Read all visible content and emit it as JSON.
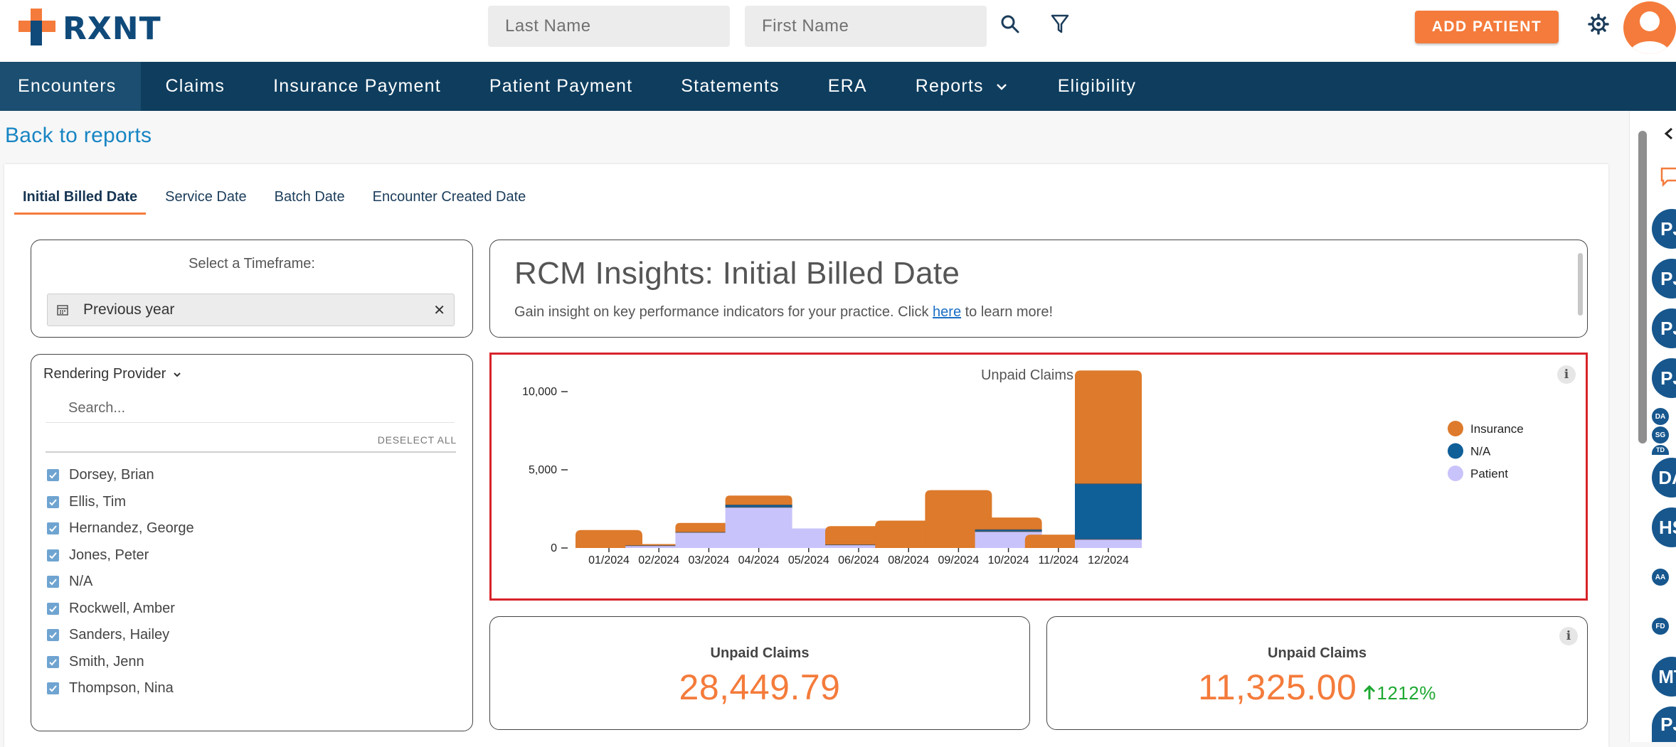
{
  "brand": {
    "name": "RXNT",
    "accent": "#f47b3b",
    "navy": "#0e3d5e"
  },
  "header": {
    "last_name_placeholder": "Last Name",
    "first_name_placeholder": "First Name",
    "add_patient_label": "ADD PATIENT"
  },
  "nav": {
    "items": [
      "Encounters",
      "Claims",
      "Insurance Payment",
      "Patient Payment",
      "Statements",
      "ERA",
      "Reports",
      "Eligibility"
    ]
  },
  "back_link": "Back to reports",
  "tabs": [
    "Initial Billed Date",
    "Service Date",
    "Batch Date",
    "Encounter Created Date"
  ],
  "timeframe": {
    "title": "Select a Timeframe:",
    "value": "Previous year",
    "clear_glyph": "✕"
  },
  "provider_filter": {
    "header": "Rendering Provider",
    "search_placeholder": "Search...",
    "deselect_label": "DESELECT ALL",
    "providers": [
      "Dorsey, Brian",
      "Ellis, Tim",
      "Hernandez, George",
      "Jones, Peter",
      "N/A",
      "Rockwell, Amber",
      "Sanders, Hailey",
      "Smith, Jenn",
      "Thompson, Nina"
    ]
  },
  "insights": {
    "title": "RCM Insights: Initial Billed Date",
    "subtitle_pre": "Gain insight on key performance indicators for your practice. Click ",
    "link_text": "here",
    "subtitle_post": " to learn more!"
  },
  "chart_data": {
    "type": "bar",
    "stacked": true,
    "title": "Unpaid Claims",
    "xlabel": "",
    "ylabel": "",
    "categories": [
      "01/2024",
      "02/2024",
      "03/2024",
      "04/2024",
      "05/2024",
      "06/2024",
      "08/2024",
      "09/2024",
      "10/2024",
      "11/2024",
      "12/2024"
    ],
    "series": [
      {
        "name": "Patient",
        "color": "#c9c3fb",
        "values": [
          0,
          150,
          1000,
          2600,
          1250,
          200,
          0,
          0,
          1050,
          0,
          550
        ]
      },
      {
        "name": "N/A",
        "color": "#0f5f99",
        "values": [
          0,
          0,
          0,
          150,
          0,
          0,
          0,
          0,
          120,
          0,
          3550
        ]
      },
      {
        "name": "Insurance",
        "color": "#dd7a2b",
        "values": [
          1150,
          100,
          600,
          600,
          0,
          1200,
          1750,
          3700,
          780,
          850,
          7250
        ]
      }
    ],
    "yticks": [
      0,
      5000,
      10000
    ],
    "ytick_labels": [
      "0",
      "5,000",
      "10,000"
    ],
    "ylim": [
      0,
      12000
    ],
    "legend": {
      "position": "right",
      "order": [
        "Insurance",
        "N/A",
        "Patient"
      ]
    },
    "grid": false
  },
  "stats": [
    {
      "label": "Unpaid Claims",
      "value": "28,449.79"
    },
    {
      "label": "Unpaid Claims",
      "value": "11,325.00",
      "change": "1212%"
    }
  ],
  "rail": {
    "initials": [
      "PJ",
      "PJ",
      "PJ",
      "PJ",
      "DA",
      "SG",
      "TD",
      "DA",
      "HS",
      "AA",
      "FD",
      "MT",
      "PJ"
    ]
  },
  "info_glyph": "i"
}
